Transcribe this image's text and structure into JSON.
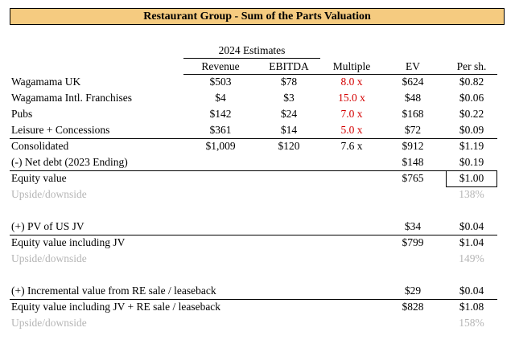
{
  "title": "Restaurant Group - Sum of the Parts Valuation",
  "header": {
    "estimates_label": "2024 Estimates",
    "col_revenue": "Revenue",
    "col_ebitda": "EBITDA",
    "col_multiple": "Multiple",
    "col_ev": "EV",
    "col_per_share": "Per sh."
  },
  "segments": [
    {
      "label": "Wagamama UK",
      "revenue": "$503",
      "ebitda": "$78",
      "multiple": "8.0 x",
      "ev": "$624",
      "per_share": "$0.82"
    },
    {
      "label": "Wagamama Intl. Franchises",
      "revenue": "$4",
      "ebitda": "$3",
      "multiple": "15.0 x",
      "ev": "$48",
      "per_share": "$0.06"
    },
    {
      "label": "Pubs",
      "revenue": "$142",
      "ebitda": "$24",
      "multiple": "7.0 x",
      "ev": "$168",
      "per_share": "$0.22"
    },
    {
      "label": "Leisure + Concessions",
      "revenue": "$361",
      "ebitda": "$14",
      "multiple": "5.0 x",
      "ev": "$72",
      "per_share": "$0.09"
    }
  ],
  "consolidated": {
    "label": "Consolidated",
    "revenue": "$1,009",
    "ebitda": "$120",
    "multiple": "7.6 x",
    "ev": "$912",
    "per_share": "$1.19"
  },
  "net_debt": {
    "label": "(-) Net debt (2023 Ending)",
    "ev": "$148",
    "per_share": "$0.19"
  },
  "equity_value": {
    "label": "Equity value",
    "ev": "$765",
    "per_share": "$1.00"
  },
  "upside1": {
    "label": "Upside/downside",
    "per_share": "138%"
  },
  "pv_us_jv": {
    "label": "(+) PV of US JV",
    "ev": "$34",
    "per_share": "$0.04"
  },
  "equity_jv": {
    "label": "Equity value including JV",
    "ev": "$799",
    "per_share": "$1.04"
  },
  "upside2": {
    "label": "Upside/downside",
    "per_share": "149%"
  },
  "re_sale": {
    "label": "(+) Incremental value from RE sale / leaseback",
    "ev": "$29",
    "per_share": "$0.04"
  },
  "equity_jv_re": {
    "label": "Equity value including JV + RE sale / leaseback",
    "ev": "$828",
    "per_share": "$1.08"
  },
  "upside3": {
    "label": "Upside/downside",
    "per_share": "158%"
  },
  "colors": {
    "title_bg": "#f5cb80",
    "multiple_red": "#d40000",
    "upside_gray": "#b5b5b5"
  }
}
